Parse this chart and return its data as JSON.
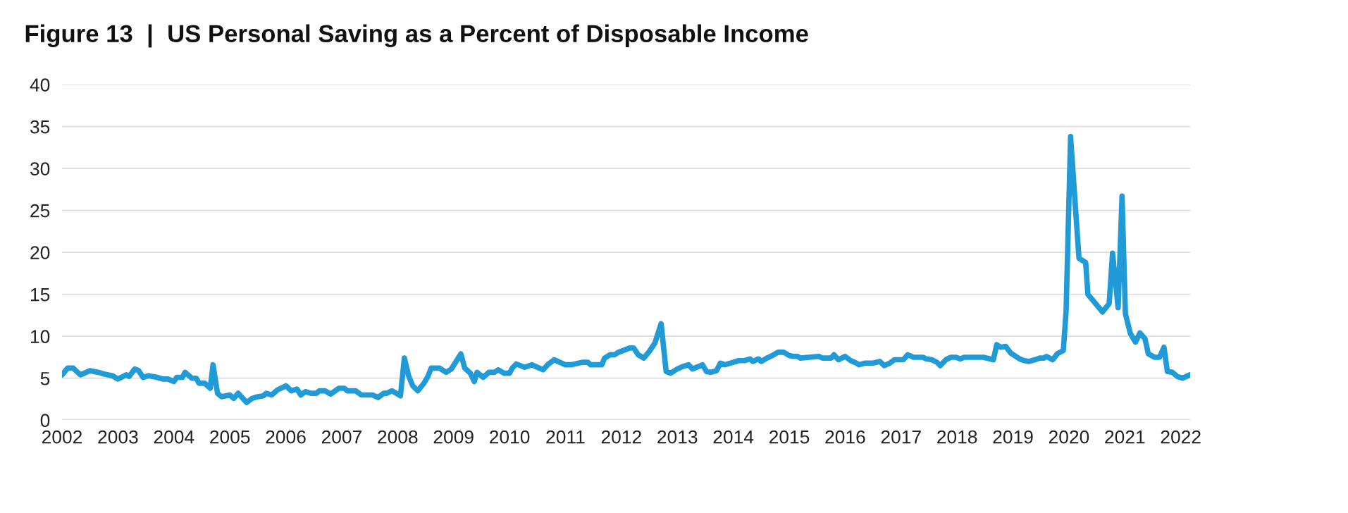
{
  "chart_data": {
    "type": "line",
    "title": "Figure 13  |  US Personal Saving as a Percent of Disposable Income",
    "x": [
      2002.0,
      2002.1,
      2002.2,
      2002.33,
      2002.5,
      2002.65,
      2002.75,
      2002.9,
      2003.0,
      2003.15,
      2003.2,
      2003.3,
      2003.37,
      2003.45,
      2003.55,
      2003.7,
      2003.8,
      2003.9,
      2004.0,
      2004.05,
      2004.15,
      2004.2,
      2004.32,
      2004.4,
      2004.45,
      2004.55,
      2004.65,
      2004.7,
      2004.78,
      2004.85,
      2005.0,
      2005.07,
      2005.15,
      2005.3,
      2005.4,
      2005.5,
      2005.6,
      2005.65,
      2005.75,
      2005.85,
      2005.95,
      2006.0,
      2006.1,
      2006.2,
      2006.27,
      2006.35,
      2006.45,
      2006.55,
      2006.6,
      2006.7,
      2006.8,
      2006.95,
      2007.05,
      2007.1,
      2007.25,
      2007.35,
      2007.45,
      2007.55,
      2007.65,
      2007.75,
      2007.8,
      2007.9,
      2008.05,
      2008.12,
      2008.2,
      2008.27,
      2008.36,
      2008.47,
      2008.54,
      2008.6,
      2008.75,
      2008.87,
      2008.96,
      2009.13,
      2009.2,
      2009.3,
      2009.37,
      2009.42,
      2009.53,
      2009.63,
      2009.73,
      2009.8,
      2009.9,
      2010.0,
      2010.05,
      2010.12,
      2010.27,
      2010.4,
      2010.6,
      2010.68,
      2010.8,
      2011.0,
      2011.1,
      2011.3,
      2011.4,
      2011.45,
      2011.65,
      2011.7,
      2011.8,
      2011.88,
      2011.95,
      2012.15,
      2012.22,
      2012.3,
      2012.4,
      2012.5,
      2012.6,
      2012.71,
      2012.8,
      2012.88,
      2013.0,
      2013.1,
      2013.2,
      2013.27,
      2013.45,
      2013.52,
      2013.6,
      2013.7,
      2013.77,
      2013.85,
      2014.0,
      2014.1,
      2014.2,
      2014.3,
      2014.35,
      2014.45,
      2014.5,
      2014.6,
      2014.7,
      2014.8,
      2014.9,
      2015.0,
      2015.07,
      2015.15,
      2015.2,
      2015.53,
      2015.6,
      2015.75,
      2015.8,
      2015.88,
      2016.0,
      2016.1,
      2016.2,
      2016.25,
      2016.35,
      2016.5,
      2016.62,
      2016.7,
      2016.8,
      2016.88,
      2017.04,
      2017.12,
      2017.22,
      2017.39,
      2017.45,
      2017.55,
      2017.64,
      2017.7,
      2017.8,
      2017.89,
      2017.98,
      2018.06,
      2018.13,
      2018.47,
      2018.65,
      2018.71,
      2018.78,
      2018.87,
      2018.96,
      2019.12,
      2019.2,
      2019.29,
      2019.39,
      2019.48,
      2019.55,
      2019.6,
      2019.71,
      2019.79,
      2019.9,
      2019.95,
      2020.03,
      2020.18,
      2020.3,
      2020.34,
      2020.44,
      2020.6,
      2020.72,
      2020.78,
      2020.88,
      2020.95,
      2021.01,
      2021.1,
      2021.19,
      2021.27,
      2021.36,
      2021.42,
      2021.53,
      2021.62,
      2021.7,
      2021.76,
      2021.85,
      2021.94,
      2022.03,
      2022.16
    ],
    "series": [
      {
        "color": "#209bd7",
        "values": [
          5.4,
          6.2,
          6.2,
          5.4,
          5.9,
          5.7,
          5.5,
          5.3,
          4.9,
          5.4,
          5.2,
          6.1,
          5.9,
          5.1,
          5.3,
          5.1,
          4.9,
          4.9,
          4.6,
          5.1,
          5.1,
          5.7,
          5.0,
          5.0,
          4.4,
          4.4,
          3.8,
          6.6,
          3.2,
          2.8,
          3.0,
          2.6,
          3.2,
          2.1,
          2.6,
          2.8,
          2.9,
          3.2,
          3.0,
          3.6,
          3.9,
          4.1,
          3.5,
          3.7,
          3.0,
          3.4,
          3.2,
          3.2,
          3.5,
          3.5,
          3.1,
          3.8,
          3.8,
          3.5,
          3.5,
          3.0,
          3.0,
          3.0,
          2.7,
          3.2,
          3.2,
          3.5,
          2.9,
          7.4,
          5.2,
          4.1,
          3.5,
          4.4,
          5.2,
          6.2,
          6.2,
          5.7,
          6.1,
          7.9,
          6.2,
          5.6,
          4.6,
          5.7,
          5.1,
          5.7,
          5.7,
          6.0,
          5.6,
          5.6,
          6.2,
          6.7,
          6.3,
          6.6,
          6.0,
          6.6,
          7.2,
          6.6,
          6.6,
          6.9,
          6.9,
          6.6,
          6.6,
          7.4,
          7.8,
          7.8,
          8.1,
          8.6,
          8.6,
          7.8,
          7.4,
          8.2,
          9.2,
          11.5,
          5.8,
          5.6,
          6.1,
          6.4,
          6.6,
          6.1,
          6.6,
          5.8,
          5.7,
          5.9,
          6.8,
          6.6,
          6.9,
          7.1,
          7.1,
          7.3,
          7.0,
          7.3,
          7.0,
          7.4,
          7.7,
          8.1,
          8.1,
          7.7,
          7.6,
          7.6,
          7.4,
          7.6,
          7.4,
          7.4,
          7.8,
          7.2,
          7.6,
          7.1,
          6.8,
          6.6,
          6.8,
          6.8,
          7.0,
          6.5,
          6.8,
          7.2,
          7.2,
          7.8,
          7.5,
          7.5,
          7.3,
          7.2,
          6.9,
          6.5,
          7.2,
          7.5,
          7.5,
          7.3,
          7.5,
          7.5,
          7.2,
          9.0,
          8.7,
          8.8,
          8.0,
          7.3,
          7.1,
          7.0,
          7.2,
          7.4,
          7.4,
          7.6,
          7.2,
          7.9,
          8.3,
          13.0,
          33.8,
          19.3,
          18.8,
          15.0,
          14.2,
          12.9,
          13.9,
          19.9,
          13.4,
          26.7,
          12.7,
          10.3,
          9.3,
          10.4,
          9.7,
          7.9,
          7.5,
          7.5,
          8.7,
          5.8,
          5.7,
          5.2,
          5.0,
          5.4
        ]
      }
    ],
    "xlim": [
      2002,
      2022.17
    ],
    "xticks": [
      2002,
      2003,
      2004,
      2005,
      2006,
      2007,
      2008,
      2009,
      2010,
      2011,
      2012,
      2013,
      2014,
      2015,
      2016,
      2017,
      2018,
      2019,
      2020,
      2021,
      2022
    ],
    "ylim": [
      0,
      40
    ],
    "yticks": [
      0,
      5,
      10,
      15,
      20,
      25,
      30,
      35,
      40
    ],
    "grid": "y",
    "line_style": "solid",
    "marker": "none"
  }
}
